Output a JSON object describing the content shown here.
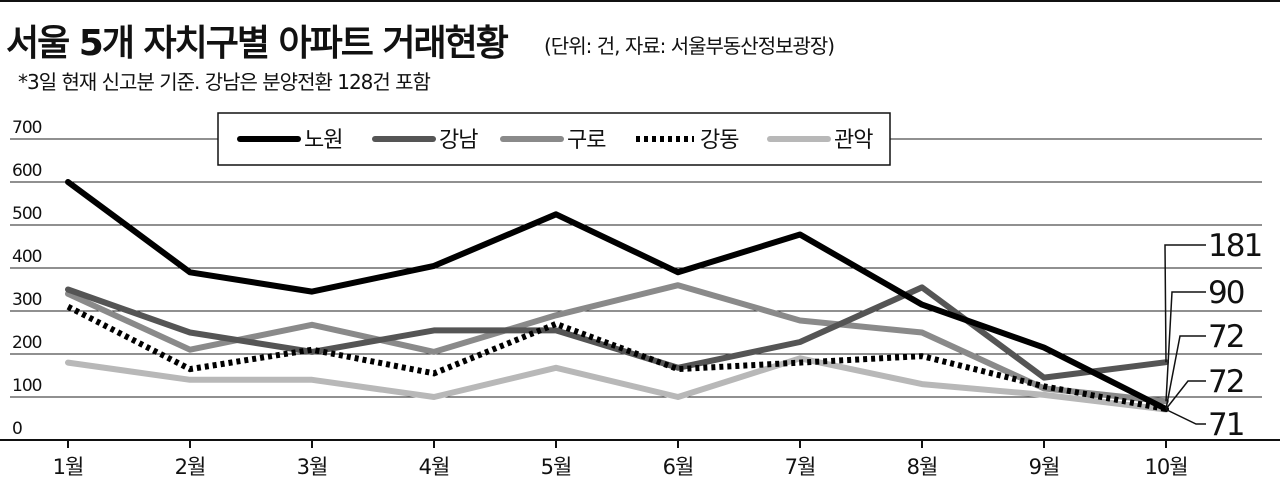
{
  "header": {
    "title": "서울 5개 자치구별 아파트 거래현황",
    "unit": "(단위: 건, 자료: 서울부동산정보광장)",
    "note": "*3일 현재 신고분 기준. 강남은 분양전환 128건 포함"
  },
  "chart_data": {
    "type": "line",
    "title": "서울 5개 자치구별 아파트 거래현황",
    "categories": [
      "1월",
      "2월",
      "3월",
      "4월",
      "5월",
      "6월",
      "7월",
      "8월",
      "9월",
      "10월"
    ],
    "y_ticks": [
      "0",
      "100",
      "200",
      "300",
      "400",
      "500",
      "600",
      "700"
    ],
    "ylim": [
      0,
      700
    ],
    "grid": true,
    "legend_position": "top",
    "series": [
      {
        "name": "노원",
        "values": [
          600,
          390,
          345,
          405,
          525,
          390,
          478,
          315,
          215,
          72
        ],
        "color": "#000000",
        "style": "solid",
        "end_label": "72"
      },
      {
        "name": "강남",
        "values": [
          350,
          250,
          205,
          255,
          255,
          168,
          228,
          355,
          145,
          181
        ],
        "color": "#555555",
        "style": "solid",
        "end_label": "181"
      },
      {
        "name": "구로",
        "values": [
          340,
          210,
          268,
          205,
          290,
          360,
          278,
          250,
          120,
          90
        ],
        "color": "#8a8a8a",
        "style": "solid",
        "end_label": "90"
      },
      {
        "name": "강동",
        "values": [
          310,
          165,
          210,
          155,
          270,
          165,
          180,
          195,
          125,
          72
        ],
        "color": "#000000",
        "style": "dotted",
        "end_label": "72"
      },
      {
        "name": "관악",
        "values": [
          180,
          140,
          140,
          100,
          168,
          100,
          190,
          130,
          105,
          71
        ],
        "color": "#b8b8b8",
        "style": "solid",
        "end_label": "71"
      }
    ]
  }
}
